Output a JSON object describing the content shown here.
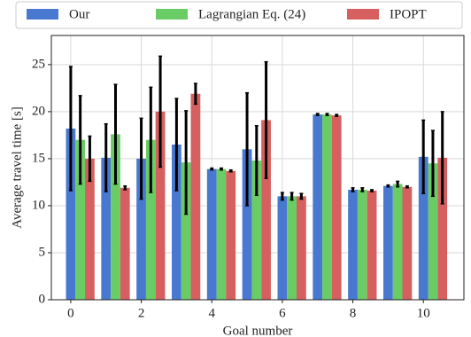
{
  "chart_data": {
    "type": "bar",
    "x_label": "Goal number",
    "y_label": "Average travel time [s]",
    "x": [
      0,
      1,
      2,
      3,
      4,
      5,
      6,
      7,
      8,
      9,
      10
    ],
    "series": [
      {
        "name": "Our",
        "color": "#4878d0",
        "values": [
          18.2,
          15.1,
          15.0,
          16.5,
          13.9,
          16.0,
          11.0,
          19.7,
          11.7,
          12.1,
          15.2
        ],
        "errors": [
          6.6,
          3.6,
          4.3,
          4.9,
          0.1,
          6.0,
          0.4,
          0.1,
          0.2,
          0.1,
          3.9
        ]
      },
      {
        "name": "Lagrangian Eq. (24)",
        "color": "#6acc64",
        "values": [
          17.0,
          17.6,
          17.0,
          14.6,
          13.9,
          14.8,
          11.0,
          19.7,
          11.7,
          12.3,
          14.5
        ],
        "errors": [
          4.7,
          5.3,
          5.6,
          5.5,
          0.1,
          3.7,
          0.4,
          0.1,
          0.2,
          0.3,
          3.5
        ]
      },
      {
        "name": "IPOPT",
        "color": "#d65f5f",
        "values": [
          15.0,
          11.9,
          20.0,
          21.9,
          13.7,
          19.1,
          11.0,
          19.6,
          11.6,
          12.0,
          15.1
        ],
        "errors": [
          2.4,
          0.2,
          5.9,
          1.1,
          0.1,
          6.2,
          0.3,
          0.1,
          0.1,
          0.1,
          4.9
        ]
      }
    ],
    "xlim": [
      -0.55,
      11.15
    ],
    "xticks": [
      0,
      2,
      4,
      6,
      8,
      10
    ],
    "ylim": [
      0,
      28.1
    ],
    "yticks": [
      0,
      5,
      10,
      15,
      20,
      25
    ],
    "grid": true,
    "legend": "top"
  }
}
